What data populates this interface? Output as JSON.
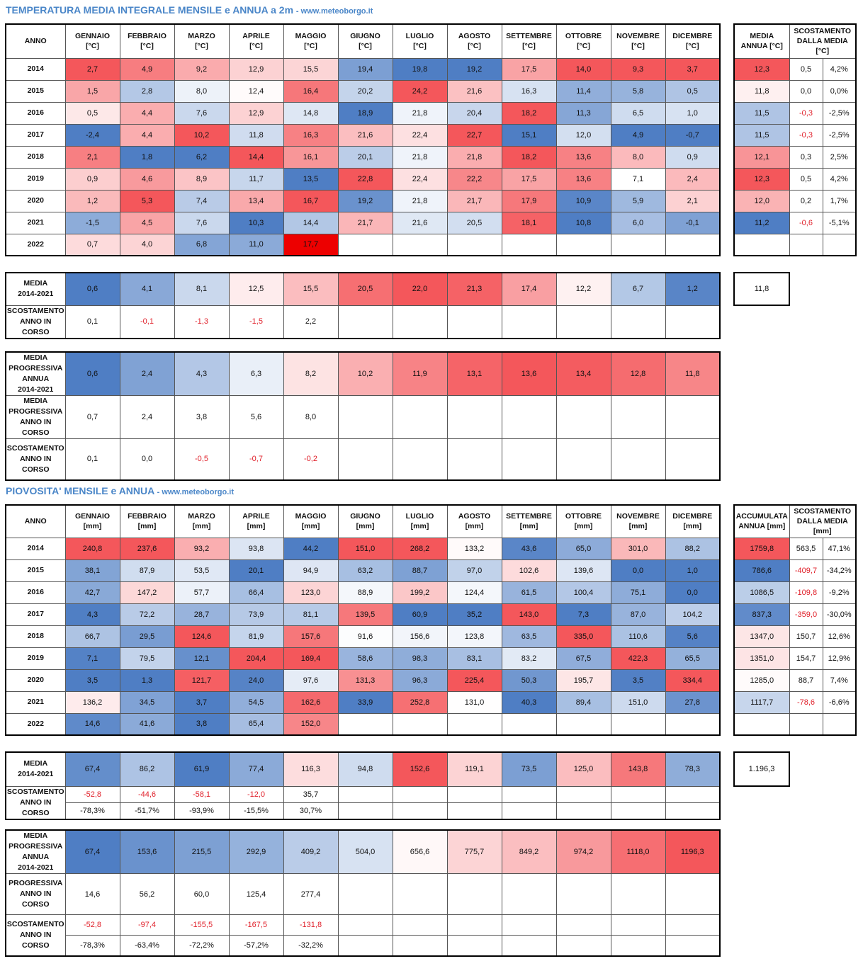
{
  "temp": {
    "title": "TEMPERATURA MEDIA INTEGRALE MENSILE e ANNUA a 2m",
    "site": "- www.meteoborgo.it",
    "header": [
      "ANNO",
      "GENNAIO\n[°C]",
      "FEBBRAIO\n[°C]",
      "MARZO\n[°C]",
      "APRILE\n[°C]",
      "MAGGIO\n[°C]",
      "GIUGNO\n[°C]",
      "LUGLIO\n[°C]",
      "AGOSTO\n[°C]",
      "SETTEMBRE\n[°C]",
      "OTTOBRE\n[°C]",
      "NOVEMBRE\n[°C]",
      "DICEMBRE\n[°C]"
    ],
    "side_header": [
      "MEDIA\nANNUA [°C]",
      "SCOSTAMENTO\nDALLA MEDIA\n[°C]"
    ],
    "rows": [
      {
        "year": "2014",
        "values": [
          "2,7",
          "4,9",
          "9,2",
          "12,9",
          "15,5",
          "19,4",
          "19,8",
          "19,2",
          "17,5",
          "14,0",
          "9,3",
          "3,7"
        ],
        "annual": "12,3",
        "dev": "0,5",
        "pct": "4,2%"
      },
      {
        "year": "2015",
        "values": [
          "1,5",
          "2,8",
          "8,0",
          "12,4",
          "16,4",
          "20,2",
          "24,2",
          "21,6",
          "16,3",
          "11,4",
          "5,8",
          "0,5"
        ],
        "annual": "11,8",
        "dev": "0,0",
        "pct": "0,0%"
      },
      {
        "year": "2016",
        "values": [
          "0,5",
          "4,4",
          "7,6",
          "12,9",
          "14,8",
          "18,9",
          "21,8",
          "20,4",
          "18,2",
          "11,3",
          "6,5",
          "1,0"
        ],
        "annual": "11,5",
        "dev": "-0,3",
        "pct": "-2,5%"
      },
      {
        "year": "2017",
        "values": [
          "-2,4",
          "4,4",
          "10,2",
          "11,8",
          "16,3",
          "21,6",
          "22,4",
          "22,7",
          "15,1",
          "12,0",
          "4,9",
          "-0,7"
        ],
        "annual": "11,5",
        "dev": "-0,3",
        "pct": "-2,5%"
      },
      {
        "year": "2018",
        "values": [
          "2,1",
          "1,8",
          "6,2",
          "14,4",
          "16,1",
          "20,1",
          "21,8",
          "21,8",
          "18,2",
          "13,6",
          "8,0",
          "0,9"
        ],
        "annual": "12,1",
        "dev": "0,3",
        "pct": "2,5%"
      },
      {
        "year": "2019",
        "values": [
          "0,9",
          "4,6",
          "8,9",
          "11,7",
          "13,5",
          "22,8",
          "22,4",
          "22,2",
          "17,5",
          "13,6",
          "7,1",
          "2,4"
        ],
        "annual": "12,3",
        "dev": "0,5",
        "pct": "4,2%"
      },
      {
        "year": "2020",
        "values": [
          "1,2",
          "5,3",
          "7,4",
          "13,4",
          "16,7",
          "19,2",
          "21,8",
          "21,7",
          "17,9",
          "10,9",
          "5,9",
          "2,1"
        ],
        "annual": "12,0",
        "dev": "0,2",
        "pct": "1,7%"
      },
      {
        "year": "2021",
        "values": [
          "-1,5",
          "4,5",
          "7,6",
          "10,3",
          "14,4",
          "21,7",
          "21,6",
          "20,5",
          "18,1",
          "10,8",
          "6,0",
          "-0,1"
        ],
        "annual": "11,2",
        "dev": "-0,6",
        "pct": "-5,1%"
      },
      {
        "year": "2022",
        "values": [
          "0,7",
          "4,0",
          "6,8",
          "11,0",
          "17,7",
          "",
          "",
          "",
          "",
          "",
          "",
          ""
        ],
        "annual": "",
        "dev": "",
        "pct": ""
      }
    ],
    "media": {
      "label": "MEDIA\n2014-2021",
      "values": [
        "0,6",
        "4,1",
        "8,1",
        "12,5",
        "15,5",
        "20,5",
        "22,0",
        "21,3",
        "17,4",
        "12,2",
        "6,7",
        "1,2"
      ],
      "box": "11,8"
    },
    "scost": {
      "label": "SCOSTAMENTO\nANNO IN\nCORSO",
      "values": [
        "0,1",
        "-0,1",
        "-1,3",
        "-1,5",
        "2,2",
        "",
        "",
        "",
        "",
        "",
        "",
        ""
      ]
    },
    "prog_media": {
      "label": "MEDIA\nPROGRESSIVA\nANNUA\n2014-2021",
      "values": [
        "0,6",
        "2,4",
        "4,3",
        "6,3",
        "8,2",
        "10,2",
        "11,9",
        "13,1",
        "13,6",
        "13,4",
        "12,8",
        "11,8"
      ]
    },
    "prog_anno": {
      "label": "MEDIA\nPROGRESSIVA\nANNO IN\nCORSO",
      "values": [
        "0,7",
        "2,4",
        "3,8",
        "5,6",
        "8,0",
        "",
        "",
        "",
        "",
        "",
        "",
        ""
      ]
    },
    "prog_scost": {
      "label": "SCOSTAMENTO\nANNO IN\nCORSO",
      "values": [
        "0,1",
        "0,0",
        "-0,5",
        "-0,7",
        "-0,2",
        "",
        "",
        "",
        "",
        "",
        "",
        ""
      ]
    }
  },
  "rain": {
    "title": "PIOVOSITA' MENSILE e ANNUA",
    "site": "- www.meteoborgo.it",
    "header": [
      "ANNO",
      "GENNAIO\n[mm]",
      "FEBBRAIO\n[mm]",
      "MARZO\n[mm]",
      "APRILE\n[mm]",
      "MAGGIO\n[mm]",
      "GIUGNO\n[mm]",
      "LUGLIO\n[mm]",
      "AGOSTO\n[mm]",
      "SETTEMBRE\n[mm]",
      "OTTOBRE\n[mm]",
      "NOVEMBRE\n[mm]",
      "DICEMBRE\n[mm]"
    ],
    "side_header": [
      "ACCUMULATA\nANNUA [mm]",
      "SCOSTAMENTO\nDALLA MEDIA\n[mm]"
    ],
    "rows": [
      {
        "year": "2014",
        "values": [
          "240,8",
          "237,6",
          "93,2",
          "93,8",
          "44,2",
          "151,0",
          "268,2",
          "133,2",
          "43,6",
          "65,0",
          "301,0",
          "88,2"
        ],
        "annual": "1759,8",
        "dev": "563,5",
        "pct": "47,1%"
      },
      {
        "year": "2015",
        "values": [
          "38,1",
          "87,9",
          "53,5",
          "20,1",
          "94,9",
          "63,2",
          "88,7",
          "97,0",
          "102,6",
          "139,6",
          "0,0",
          "1,0"
        ],
        "annual": "786,6",
        "dev": "-409,7",
        "pct": "-34,2%"
      },
      {
        "year": "2016",
        "values": [
          "42,7",
          "147,2",
          "57,7",
          "66,4",
          "123,0",
          "88,9",
          "199,2",
          "124,4",
          "61,5",
          "100,4",
          "75,1",
          "0,0"
        ],
        "annual": "1086,5",
        "dev": "-109,8",
        "pct": "-9,2%"
      },
      {
        "year": "2017",
        "values": [
          "4,3",
          "72,2",
          "28,7",
          "73,9",
          "81,1",
          "139,5",
          "60,9",
          "35,2",
          "143,0",
          "7,3",
          "87,0",
          "104,2"
        ],
        "annual": "837,3",
        "dev": "-359,0",
        "pct": "-30,0%"
      },
      {
        "year": "2018",
        "values": [
          "66,7",
          "29,5",
          "124,6",
          "81,9",
          "157,6",
          "91,6",
          "156,6",
          "123,8",
          "63,5",
          "335,0",
          "110,6",
          "5,6"
        ],
        "annual": "1347,0",
        "dev": "150,7",
        "pct": "12,6%"
      },
      {
        "year": "2019",
        "values": [
          "7,1",
          "79,5",
          "12,1",
          "204,4",
          "169,4",
          "58,6",
          "98,3",
          "83,1",
          "83,2",
          "67,5",
          "422,3",
          "65,5"
        ],
        "annual": "1351,0",
        "dev": "154,7",
        "pct": "12,9%"
      },
      {
        "year": "2020",
        "values": [
          "3,5",
          "1,3",
          "121,7",
          "24,0",
          "97,6",
          "131,3",
          "96,3",
          "225,4",
          "50,3",
          "195,7",
          "3,5",
          "334,4"
        ],
        "annual": "1285,0",
        "dev": "88,7",
        "pct": "7,4%"
      },
      {
        "year": "2021",
        "values": [
          "136,2",
          "34,5",
          "3,7",
          "54,5",
          "162,6",
          "33,9",
          "252,8",
          "131,0",
          "40,3",
          "89,4",
          "151,0",
          "27,8"
        ],
        "annual": "1117,7",
        "dev": "-78,6",
        "pct": "-6,6%"
      },
      {
        "year": "2022",
        "values": [
          "14,6",
          "41,6",
          "3,8",
          "65,4",
          "152,0",
          "",
          "",
          "",
          "",
          "",
          "",
          ""
        ],
        "annual": "",
        "dev": "",
        "pct": ""
      }
    ],
    "media": {
      "label": "MEDIA\n2014-2021",
      "values": [
        "67,4",
        "86,2",
        "61,9",
        "77,4",
        "116,3",
        "94,8",
        "152,6",
        "119,1",
        "73,5",
        "125,0",
        "143,8",
        "78,3"
      ],
      "box": "1.196,3"
    },
    "scost": {
      "label": "SCOSTAMENTO\nANNO IN\nCORSO",
      "values": [
        "-52,8",
        "-44,6",
        "-58,1",
        "-12,0",
        "35,7",
        "",
        "",
        "",
        "",
        "",
        "",
        ""
      ],
      "pct": [
        "-78,3%",
        "-51,7%",
        "-93,9%",
        "-15,5%",
        "30,7%",
        "",
        "",
        "",
        "",
        "",
        "",
        ""
      ]
    },
    "prog_media": {
      "label": "MEDIA\nPROGRESSIVA\nANNUA\n2014-2021",
      "values": [
        "67,4",
        "153,6",
        "215,5",
        "292,9",
        "409,2",
        "504,0",
        "656,6",
        "775,7",
        "849,2",
        "974,2",
        "1118,0",
        "1196,3"
      ]
    },
    "prog_anno": {
      "label": "PROGRESSIVA\nANNO IN\nCORSO",
      "values": [
        "14,6",
        "56,2",
        "60,0",
        "125,4",
        "277,4",
        "",
        "",
        "",
        "",
        "",
        "",
        ""
      ]
    },
    "prog_scost": {
      "label": "SCOSTAMENTO\nANNO IN\nCORSO",
      "values": [
        "-52,8",
        "-97,4",
        "-155,5",
        "-167,5",
        "-131,8",
        "",
        "",
        "",
        "",
        "",
        "",
        ""
      ],
      "pct": [
        "-78,3%",
        "-63,4%",
        "-72,2%",
        "-57,2%",
        "-32,2%",
        "",
        "",
        "",
        "",
        "",
        "",
        ""
      ]
    }
  },
  "colors": {
    "cold": "#4f7ec4",
    "warm": "#f4575b",
    "neutral": "#ffffff",
    "negative_text": "#e0202a",
    "title": "#4a86c8"
  }
}
